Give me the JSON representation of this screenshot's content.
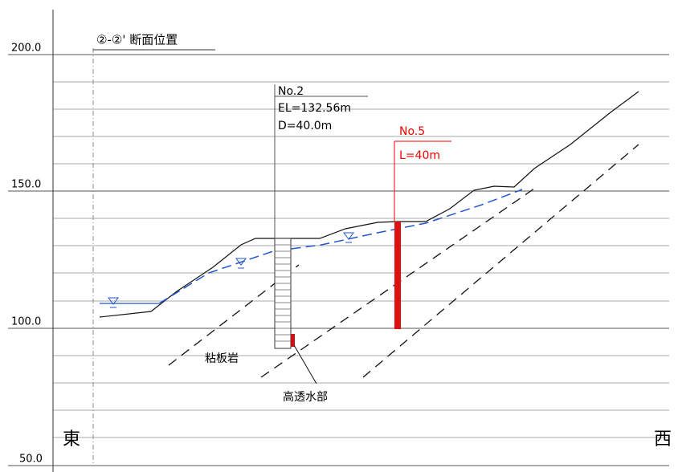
{
  "section_title": "②-②' 断面位置",
  "elevation_labels": [
    "200.0",
    "150.0",
    "100.0",
    "50.0"
  ],
  "borehole": {
    "name": "No.2",
    "elevation": "EL=132.56m",
    "depth": "D=40.0m"
  },
  "anchor": {
    "name": "No.5",
    "length": "L=40m"
  },
  "rock_label": "粘板岩",
  "permeable_label": "高透水部",
  "direction_left": "東",
  "direction_right": "西"
}
